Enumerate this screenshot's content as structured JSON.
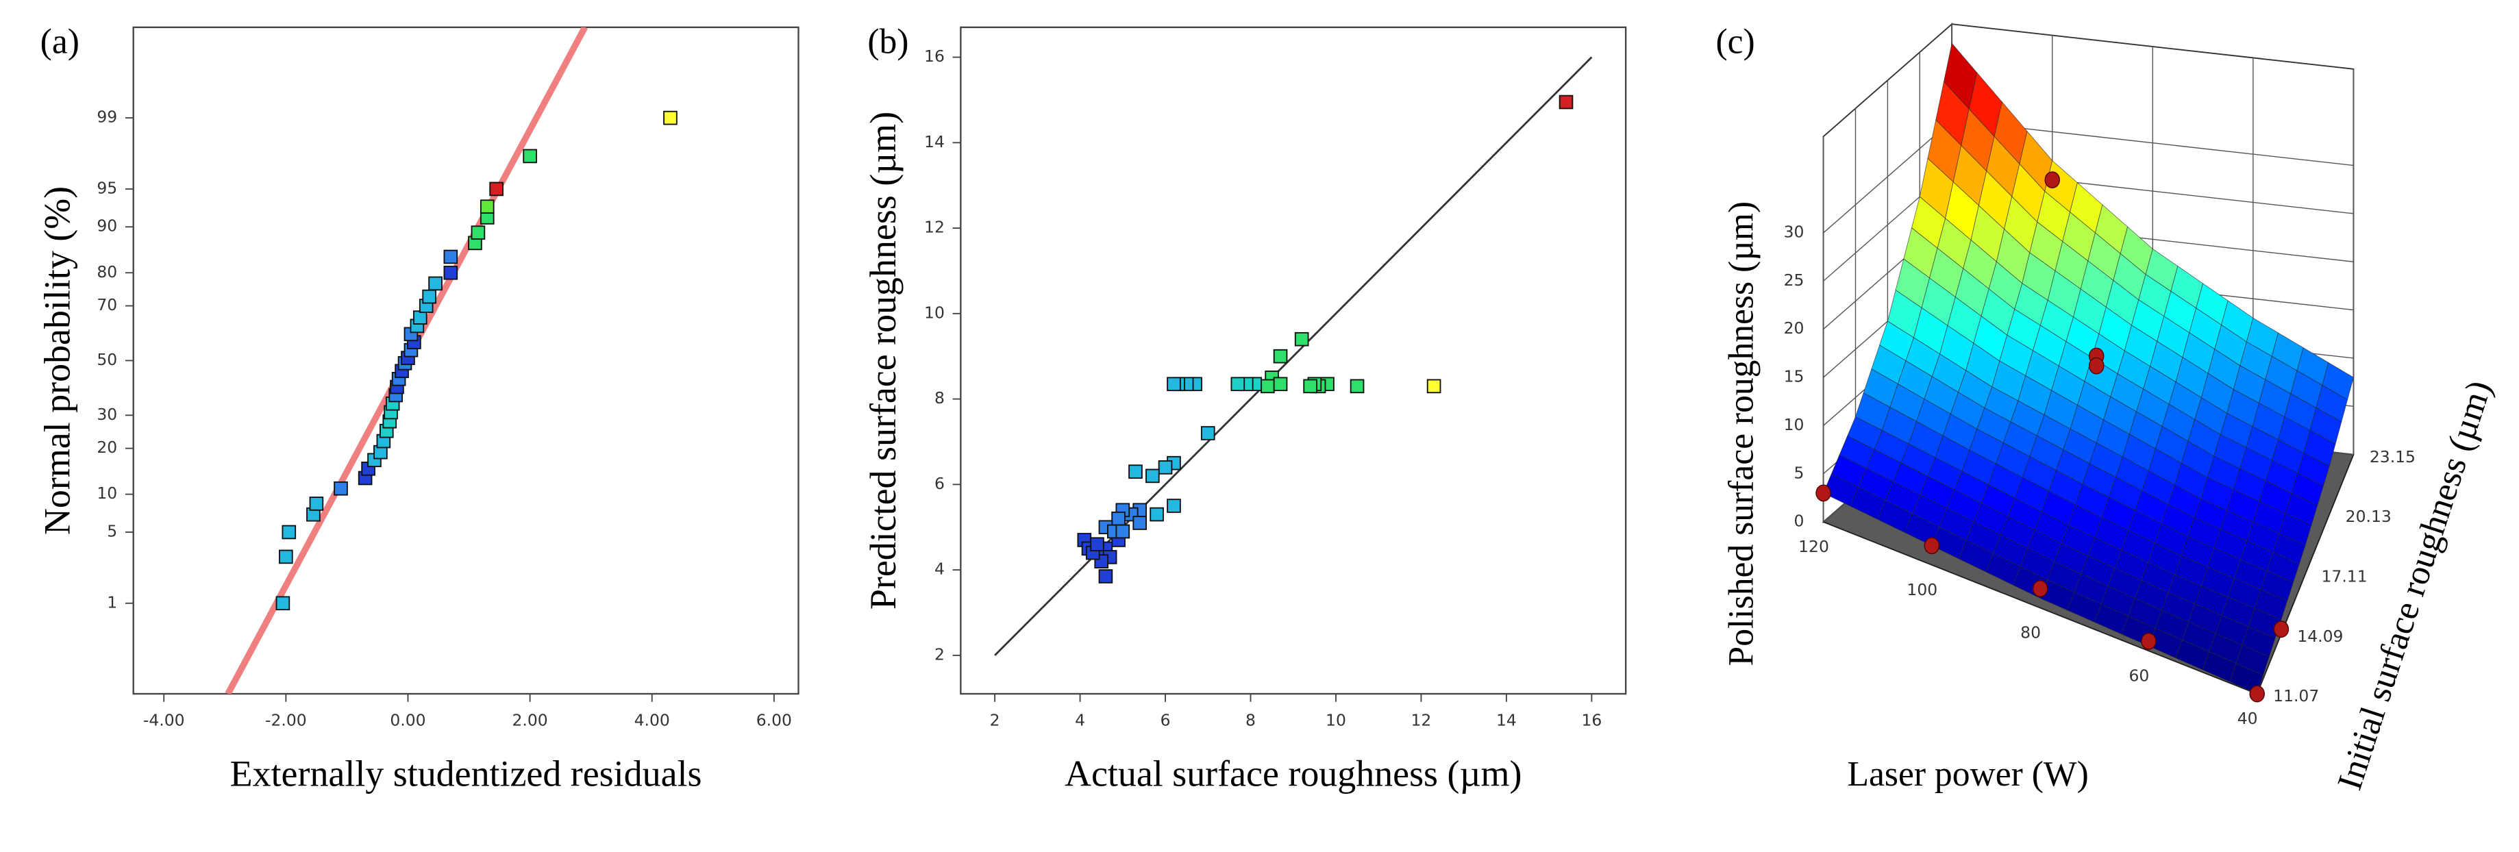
{
  "chart_data": [
    {
      "type": "scatter",
      "label": "(a)",
      "xlabel": "Externally studentized residuals",
      "ylabel": "Normal probability (%)",
      "yscale": "probit",
      "xlim": [
        -4.5,
        6.4
      ],
      "ylim": [
        0.07,
        99.93
      ],
      "xticks": [
        {
          "value": -4,
          "label": "-4.00"
        },
        {
          "value": -2,
          "label": "-2.00"
        },
        {
          "value": 0,
          "label": "0.00"
        },
        {
          "value": 2,
          "label": "2.00"
        },
        {
          "value": 4,
          "label": "4.00"
        },
        {
          "value": 6,
          "label": "6.00"
        }
      ],
      "yticks": [
        1,
        5,
        10,
        20,
        30,
        50,
        70,
        80,
        90,
        95,
        99
      ],
      "x": [
        -2.05,
        -2.0,
        -1.95,
        -1.55,
        -1.5,
        -1.1,
        -0.7,
        -0.65,
        -0.55,
        -0.45,
        -0.4,
        -0.35,
        -0.3,
        -0.28,
        -0.25,
        -0.2,
        -0.18,
        -0.15,
        -0.1,
        -0.05,
        0,
        0.05,
        0.1,
        0.05,
        0.15,
        0.2,
        0.3,
        0.35,
        0.45,
        0.7,
        0.7,
        1.1,
        1.15,
        1.3,
        1.3,
        1.45,
        2.0,
        4.3
      ],
      "y": [
        1,
        3,
        5,
        7,
        8.5,
        11,
        13,
        15,
        17,
        19,
        22,
        25,
        28,
        31,
        34,
        37,
        40,
        43,
        46,
        49,
        51,
        54,
        57,
        60,
        63,
        66,
        70,
        73,
        77,
        80,
        84,
        87,
        89,
        91.5,
        93,
        95,
        97.5,
        99
      ],
      "colors": [
        "#22b8e0",
        "#22b8e0",
        "#22b8e0",
        "#22b8e0",
        "#22b8e0",
        "#2f7fe8",
        "#1f3fd6",
        "#1f3fd6",
        "#22b8e0",
        "#22b8e0",
        "#22b8e0",
        "#1ed1c8",
        "#1ed1c8",
        "#1ed1c8",
        "#1ed1c8",
        "#2f7fe8",
        "#1f3fd6",
        "#2f7fe8",
        "#1f3fd6",
        "#2f7fe8",
        "#1f3fd6",
        "#2f7fe8",
        "#1f3fd6",
        "#2f7fe8",
        "#22b8e0",
        "#22b8e0",
        "#22b8e0",
        "#22b8e0",
        "#22b8e0",
        "#1f3fd6",
        "#2f7fe8",
        "#2ee06a",
        "#2ee06a",
        "#2ee06a",
        "#5fe83a",
        "#d42020",
        "#2ee06a",
        "#ffff33"
      ],
      "fit_line": {
        "color": "#f08080",
        "x": [
          -2.95,
          2.9
        ],
        "y": [
          0.07,
          99.93
        ]
      }
    },
    {
      "type": "scatter",
      "label": "(b)",
      "xlabel": "Actual surface roughness (µm)",
      "ylabel": "Predicted surface roughness (µm)",
      "xlim": [
        1.2,
        16.8
      ],
      "ylim": [
        1.1,
        16.7
      ],
      "xticks": [
        2,
        4,
        6,
        8,
        10,
        12,
        14,
        16
      ],
      "yticks": [
        2,
        4,
        6,
        8,
        10,
        12,
        14,
        16
      ],
      "x": [
        15.4,
        12.3,
        10.5,
        9.8,
        9.6,
        9.5,
        9.4,
        9.2,
        8.7,
        8.5,
        8.4,
        8.7,
        8.1,
        7.9,
        7.7,
        6.7,
        6.5,
        6.3,
        6.2,
        7.0,
        6.2,
        6.0,
        5.7,
        5.3,
        6.2,
        5.8,
        5.4,
        5.2,
        5.4,
        5.0,
        4.9,
        4.6,
        4.9,
        4.6,
        4.7,
        4.5,
        4.6,
        4.1,
        4.2,
        4.3,
        4.4,
        4.8,
        5.0
      ],
      "y": [
        14.95,
        8.3,
        8.3,
        8.35,
        8.3,
        8.35,
        8.3,
        9.4,
        9.0,
        8.5,
        8.3,
        8.35,
        8.35,
        8.35,
        8.35,
        8.35,
        8.35,
        8.35,
        8.35,
        7.2,
        6.5,
        6.4,
        6.2,
        6.3,
        5.5,
        5.3,
        5.4,
        5.3,
        5.1,
        5.4,
        5.2,
        5.0,
        4.7,
        4.5,
        4.3,
        4.2,
        3.85,
        4.7,
        4.5,
        4.4,
        4.6,
        4.9,
        4.9
      ],
      "colors": [
        "#d42020",
        "#ffff33",
        "#2ee06a",
        "#2ee06a",
        "#2ee06a",
        "#2ee06a",
        "#2ee06a",
        "#2ee06a",
        "#2ee06a",
        "#2ee06a",
        "#2ee06a",
        "#2ee06a",
        "#1ed1c8",
        "#1ed1c8",
        "#1ed1c8",
        "#22b8e0",
        "#22b8e0",
        "#22b8e0",
        "#22b8e0",
        "#22b8e0",
        "#22b8e0",
        "#22b8e0",
        "#22b8e0",
        "#22b8e0",
        "#22b8e0",
        "#22b8e0",
        "#2f7fe8",
        "#2f7fe8",
        "#2f7fe8",
        "#2f7fe8",
        "#2f7fe8",
        "#2f7fe8",
        "#1f3fd6",
        "#1f3fd6",
        "#1f3fd6",
        "#1f3fd6",
        "#1f3fd6",
        "#1f3fd6",
        "#1f3fd6",
        "#1f3fd6",
        "#1f3fd6",
        "#2f7fe8",
        "#2f7fe8"
      ],
      "fit_line": {
        "color": "#333333",
        "x": [
          2,
          16
        ],
        "y": [
          2,
          16
        ]
      }
    },
    {
      "type": "surface3d",
      "label": "(c)",
      "xlabel": "Laser power (W)",
      "ylabel": "Initial surface roughness (µm)",
      "zlabel": "Polished surface roughness (µm)",
      "xlim": [
        120,
        40
      ],
      "ylim": [
        11.07,
        23.15
      ],
      "zlim": [
        0,
        40
      ],
      "xticks": [
        120,
        100,
        80,
        60,
        40
      ],
      "yticks": [
        11.07,
        14.09,
        17.11,
        20.13,
        23.15
      ],
      "zticks": [
        0,
        5,
        10,
        15,
        20,
        25,
        30
      ],
      "surface": {
        "x": [
          120,
          100,
          80,
          60,
          40
        ],
        "y": [
          11.07,
          14.09,
          17.11,
          20.13,
          23.15
        ],
        "z": [
          [
            3,
            8,
            15,
            25,
            38
          ],
          [
            2,
            6,
            11,
            18,
            27
          ],
          [
            1,
            4,
            8,
            13,
            19
          ],
          [
            0.5,
            2.5,
            5,
            8.5,
            13
          ],
          [
            0,
            1.5,
            3,
            5,
            8
          ]
        ]
      },
      "points": {
        "color": "#b01818",
        "x": [
          120,
          100,
          80,
          80,
          80,
          60,
          40,
          40,
          100
        ],
        "y": [
          11.07,
          11.07,
          11.07,
          17.11,
          17.11,
          11.07,
          11.07,
          14.09,
          23.15
        ],
        "z": [
          3,
          2,
          2,
          17,
          16,
          1,
          0,
          0.5,
          25
        ]
      }
    }
  ]
}
